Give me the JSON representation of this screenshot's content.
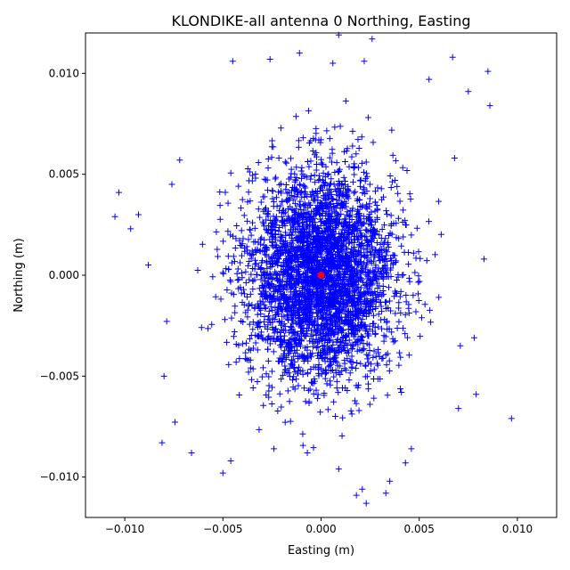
{
  "chart_data": {
    "type": "scatter",
    "title": "KLONDIKE-all antenna 0 Northing, Easting",
    "xlabel": "Easting (m)",
    "ylabel": "Northing (m)",
    "xlim": [
      -0.012,
      0.012
    ],
    "ylim": [
      -0.012,
      0.012
    ],
    "xticks": [
      -0.01,
      -0.005,
      0.0,
      0.005,
      0.01
    ],
    "xtick_labels": [
      "−0.010",
      "−0.005",
      "0.000",
      "0.005",
      "0.010"
    ],
    "yticks": [
      -0.01,
      -0.005,
      0.0,
      0.005,
      0.01
    ],
    "ytick_labels": [
      "−0.010",
      "−0.005",
      "0.000",
      "0.005",
      "0.010"
    ],
    "grid": false,
    "legend": "none",
    "series": [
      {
        "marker": "+",
        "color": "#0000ff",
        "distribution": "dense elliptical cloud centred near the origin",
        "center": [
          0.0,
          0.0
        ],
        "spread_std": [
          0.0019,
          0.0026
        ],
        "outliers": [
          [
            -0.0105,
            0.0029
          ],
          [
            -0.0103,
            0.0041
          ],
          [
            -0.0097,
            0.0023
          ],
          [
            -0.0093,
            0.003
          ],
          [
            -0.0088,
            0.0005
          ],
          [
            -0.0081,
            -0.0083
          ],
          [
            -0.008,
            -0.005
          ],
          [
            -0.0076,
            0.0045
          ],
          [
            -0.0072,
            0.0057
          ],
          [
            -0.0066,
            -0.0088
          ],
          [
            -0.005,
            -0.0098
          ],
          [
            -0.0045,
            0.0106
          ],
          [
            -0.0046,
            -0.0092
          ],
          [
            -0.0026,
            0.0107
          ],
          [
            -0.0024,
            -0.0086
          ],
          [
            -0.0011,
            0.011
          ],
          [
            -0.0007,
            -0.0088
          ],
          [
            0.0006,
            0.0105
          ],
          [
            0.0009,
            -0.0096
          ],
          [
            0.0009,
            0.0119
          ],
          [
            0.0018,
            -0.0109
          ],
          [
            0.0021,
            -0.0106
          ],
          [
            0.0022,
            0.0106
          ],
          [
            0.0023,
            -0.0113
          ],
          [
            0.0026,
            0.0117
          ],
          [
            0.0033,
            -0.0108
          ],
          [
            0.0035,
            -0.0102
          ],
          [
            0.0043,
            -0.0093
          ],
          [
            0.0046,
            -0.0086
          ],
          [
            0.0055,
            0.0097
          ],
          [
            0.0067,
            0.0108
          ],
          [
            0.0068,
            0.0058
          ],
          [
            0.007,
            -0.0066
          ],
          [
            0.0075,
            0.0091
          ],
          [
            0.0078,
            -0.0031
          ],
          [
            0.0079,
            -0.0059
          ],
          [
            0.0083,
            0.0008
          ],
          [
            0.0085,
            0.0101
          ],
          [
            0.0086,
            0.0084
          ],
          [
            0.0097,
            -0.0071
          ]
        ]
      },
      {
        "marker": "o",
        "color": "#ff0000",
        "points": [
          [
            0.0,
            0.0
          ]
        ]
      }
    ]
  }
}
